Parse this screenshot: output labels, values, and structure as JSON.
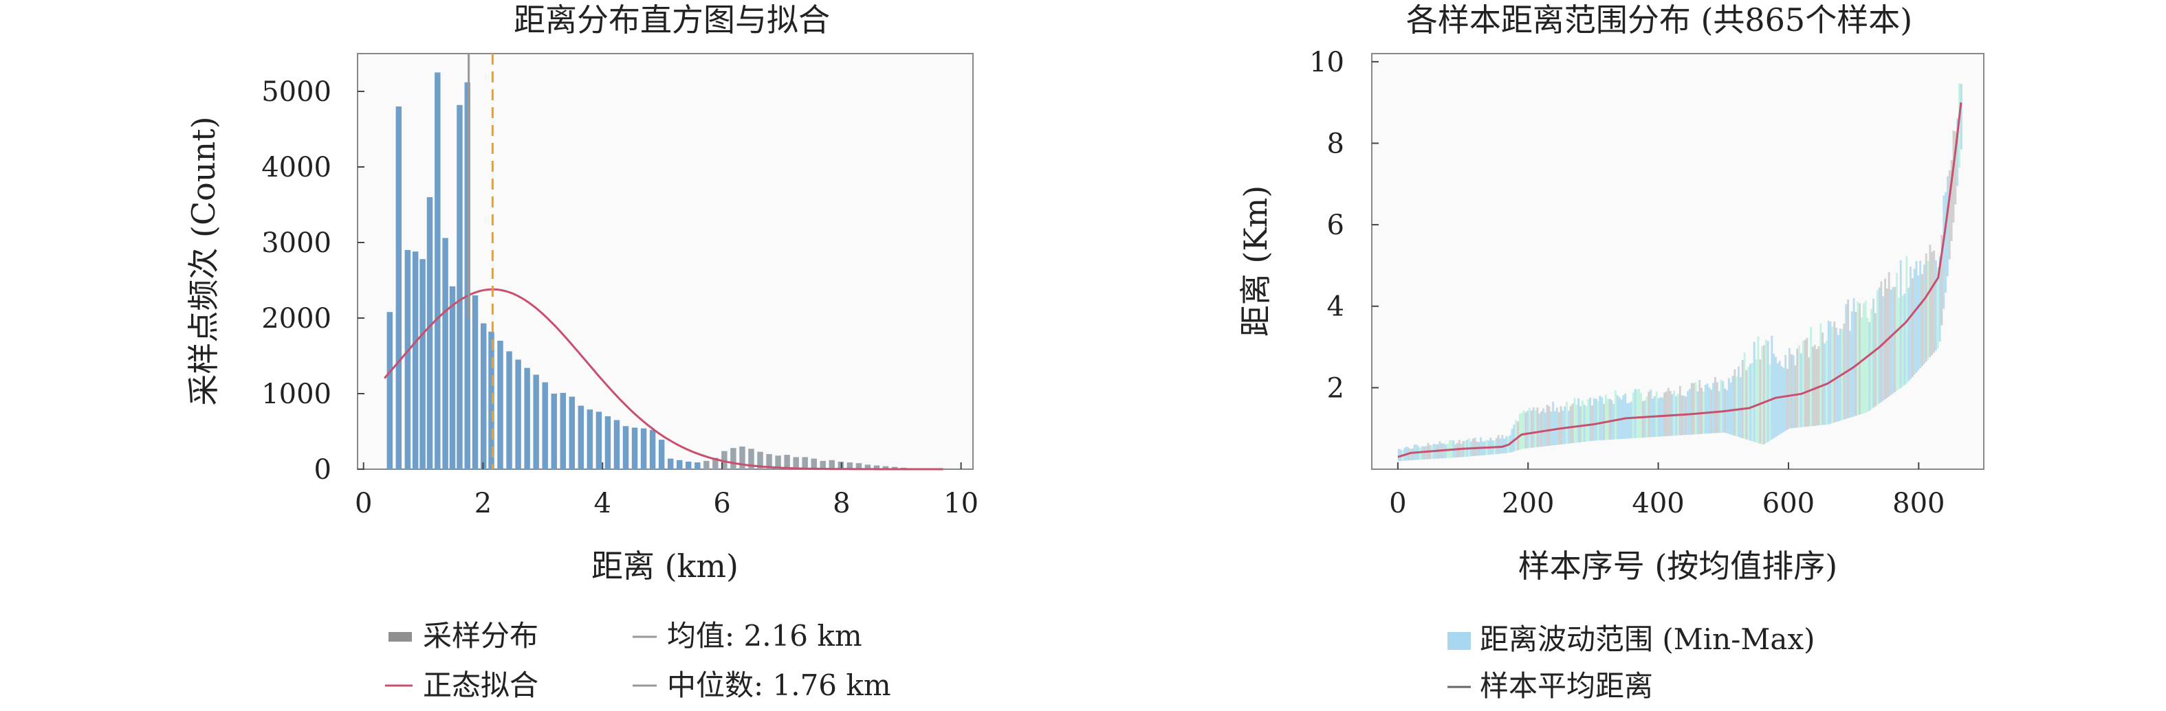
{
  "left_chart": {
    "title": "距离分布直方图与拟合",
    "xlabel": "距离 (km)",
    "ylabel": "采样点频次 (Count)",
    "legend": {
      "hist": "采样分布",
      "fit": "正态拟合",
      "mean": "均值: 2.16 km",
      "median": "中位数: 1.76 km"
    }
  },
  "right_chart": {
    "title": "各样本距离范围分布 (共865个样本)",
    "xlabel": "样本序号 (按均值排序)",
    "ylabel": "距离 (Km)",
    "legend": {
      "band": "距离波动范围 (Min-Max)",
      "line": "样本平均距离"
    }
  },
  "colors": {
    "bar": "#6f9ec8",
    "bar_tail": "#9aa5ad",
    "fit": "#c8506e",
    "mean": "#f0a020",
    "median": "#999999",
    "band": "#a8d8f0",
    "band_light": "#b8f0d8",
    "mean_line": "#c8506e",
    "panel_bg": "#fafafa"
  },
  "chart_data": [
    {
      "type": "bar",
      "title": "距离分布直方图与拟合",
      "xlabel": "距离 (km)",
      "ylabel": "采样点频次 (Count)",
      "xlim": [
        -0.1,
        10.2
      ],
      "ylim": [
        0,
        5500
      ],
      "xticks": [
        0,
        2,
        4,
        6,
        8,
        10
      ],
      "yticks": [
        0,
        1000,
        2000,
        3000,
        4000,
        5000
      ],
      "bin_width": 0.12,
      "bins": [
        [
          0.45,
          2080
        ],
        [
          0.6,
          4800
        ],
        [
          0.75,
          2900
        ],
        [
          0.88,
          2880
        ],
        [
          1.0,
          2780
        ],
        [
          1.12,
          3600
        ],
        [
          1.25,
          5250
        ],
        [
          1.38,
          3060
        ],
        [
          1.5,
          2420
        ],
        [
          1.62,
          4820
        ],
        [
          1.75,
          5120
        ],
        [
          1.88,
          2300
        ],
        [
          2.02,
          1930
        ],
        [
          2.15,
          1820
        ],
        [
          2.3,
          1700
        ],
        [
          2.45,
          1560
        ],
        [
          2.6,
          1450
        ],
        [
          2.75,
          1340
        ],
        [
          2.9,
          1250
        ],
        [
          3.05,
          1150
        ],
        [
          3.2,
          1000
        ],
        [
          3.35,
          1010
        ],
        [
          3.5,
          960
        ],
        [
          3.65,
          840
        ],
        [
          3.8,
          790
        ],
        [
          3.95,
          760
        ],
        [
          4.1,
          700
        ],
        [
          4.25,
          650
        ],
        [
          4.4,
          570
        ],
        [
          4.55,
          550
        ],
        [
          4.7,
          540
        ],
        [
          4.85,
          520
        ],
        [
          5.0,
          390
        ],
        [
          5.15,
          140
        ],
        [
          5.3,
          120
        ],
        [
          5.45,
          100
        ],
        [
          5.6,
          90
        ],
        [
          5.75,
          110
        ],
        [
          5.9,
          150
        ],
        [
          6.05,
          240
        ],
        [
          6.2,
          280
        ],
        [
          6.35,
          300
        ],
        [
          6.5,
          270
        ],
        [
          6.65,
          230
        ],
        [
          6.8,
          200
        ],
        [
          6.95,
          180
        ],
        [
          7.1,
          190
        ],
        [
          7.25,
          160
        ],
        [
          7.4,
          160
        ],
        [
          7.55,
          140
        ],
        [
          7.7,
          110
        ],
        [
          7.85,
          120
        ],
        [
          8.0,
          100
        ],
        [
          8.15,
          90
        ],
        [
          8.3,
          80
        ],
        [
          8.45,
          60
        ],
        [
          8.6,
          50
        ],
        [
          8.75,
          40
        ],
        [
          8.9,
          30
        ],
        [
          9.05,
          20
        ]
      ],
      "tail_start": 5.7,
      "normal_fit": {
        "mean": 2.16,
        "peak": 2380,
        "sigma": 1.55,
        "x_from": 0.35,
        "x_to": 9.7
      },
      "mean_line": 2.16,
      "median_line": 1.76
    },
    {
      "type": "area",
      "title": "各样本距离范围分布 (共865个样本)",
      "xlabel": "样本序号 (按均值排序)",
      "ylabel": "距离 (Km)",
      "xlim": [
        -40,
        900
      ],
      "ylim": [
        0,
        10.2
      ],
      "xticks": [
        0,
        200,
        400,
        600,
        800
      ],
      "yticks": [
        2,
        4,
        6,
        8,
        10
      ],
      "n_samples": 865,
      "mean_curve": [
        [
          0,
          0.3
        ],
        [
          20,
          0.4
        ],
        [
          60,
          0.45
        ],
        [
          100,
          0.5
        ],
        [
          160,
          0.55
        ],
        [
          170,
          0.6
        ],
        [
          190,
          0.85
        ],
        [
          250,
          1.0
        ],
        [
          300,
          1.1
        ],
        [
          350,
          1.25
        ],
        [
          400,
          1.3
        ],
        [
          450,
          1.35
        ],
        [
          500,
          1.42
        ],
        [
          540,
          1.5
        ],
        [
          580,
          1.75
        ],
        [
          620,
          1.85
        ],
        [
          660,
          2.1
        ],
        [
          700,
          2.5
        ],
        [
          740,
          3.0
        ],
        [
          780,
          3.6
        ],
        [
          810,
          4.2
        ],
        [
          830,
          4.7
        ],
        [
          840,
          5.8
        ],
        [
          850,
          7.0
        ],
        [
          858,
          8.0
        ],
        [
          865,
          9.0
        ]
      ],
      "band_curve": [
        [
          0,
          0.2,
          0.5
        ],
        [
          100,
          0.3,
          0.7
        ],
        [
          170,
          0.4,
          0.8
        ],
        [
          190,
          0.5,
          1.4
        ],
        [
          300,
          0.7,
          1.7
        ],
        [
          400,
          0.8,
          1.9
        ],
        [
          500,
          0.9,
          2.1
        ],
        [
          560,
          0.6,
          3.0
        ],
        [
          600,
          1.0,
          2.7
        ],
        [
          660,
          1.1,
          3.5
        ],
        [
          720,
          1.4,
          4.0
        ],
        [
          780,
          2.1,
          4.8
        ],
        [
          830,
          3.0,
          5.3
        ],
        [
          845,
          5.0,
          7.5
        ],
        [
          865,
          8.0,
          9.6
        ]
      ]
    }
  ]
}
